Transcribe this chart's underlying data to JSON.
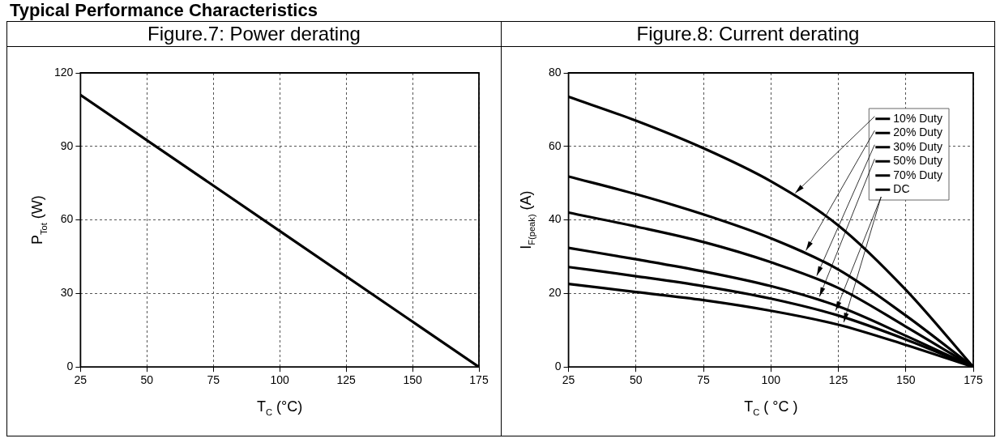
{
  "chart_data": [
    {
      "type": "line",
      "title": "Figure.7: Power derating",
      "xlabel": "T$_{C}$ (°C)",
      "ylabel": "P$_{Tot}$ (W)",
      "annotations": [
        "Typical Performance Characteristics"
      ],
      "x": [
        25,
        175
      ],
      "series": [
        {
          "color": "#000000",
          "values": [
            111,
            0
          ]
        }
      ],
      "xlim": [
        25,
        175
      ],
      "xticks": [
        25,
        50,
        75,
        100,
        125,
        150,
        175
      ],
      "ylim": [
        0,
        120
      ],
      "yticks": [
        0,
        30,
        60,
        90,
        120
      ],
      "grid": true,
      "legend": false,
      "marker": "none",
      "line_style": "solid"
    },
    {
      "type": "line",
      "title": "Figure.8: Current derating",
      "xlabel": "T$_{C}$ ( °C )",
      "ylabel": "I$_{F(peak)}$ (A)",
      "x": [
        25,
        50,
        75,
        100,
        125,
        150,
        175
      ],
      "series": [
        {
          "name": "10% Duty",
          "color": "#000000",
          "values": [
            73.5,
            67,
            59.5,
            50.5,
            38.5,
            21,
            0
          ]
        },
        {
          "name": "20% Duty",
          "color": "#000000",
          "values": [
            51.8,
            47,
            41.5,
            35,
            26.5,
            14,
            0
          ]
        },
        {
          "name": "30% Duty",
          "color": "#000000",
          "values": [
            42,
            38.2,
            34,
            28.5,
            21.5,
            11,
            0
          ]
        },
        {
          "name": "50% Duty",
          "color": "#000000",
          "values": [
            32.4,
            29.3,
            26,
            22,
            16.5,
            8.5,
            0
          ]
        },
        {
          "name": "70% Duty",
          "color": "#000000",
          "values": [
            27.2,
            24.7,
            22,
            18.6,
            14,
            7.5,
            0
          ]
        },
        {
          "name": "DC",
          "color": "#000000",
          "values": [
            22.6,
            20.4,
            18.2,
            15.3,
            11.5,
            6,
            0
          ]
        }
      ],
      "xlim": [
        25,
        175
      ],
      "xticks": [
        25,
        50,
        75,
        100,
        125,
        150,
        175
      ],
      "ylim": [
        0,
        80
      ],
      "yticks": [
        0,
        20,
        40,
        60,
        80
      ],
      "grid": true,
      "legend": "top right",
      "marker": "none",
      "line_style": "solid"
    }
  ]
}
